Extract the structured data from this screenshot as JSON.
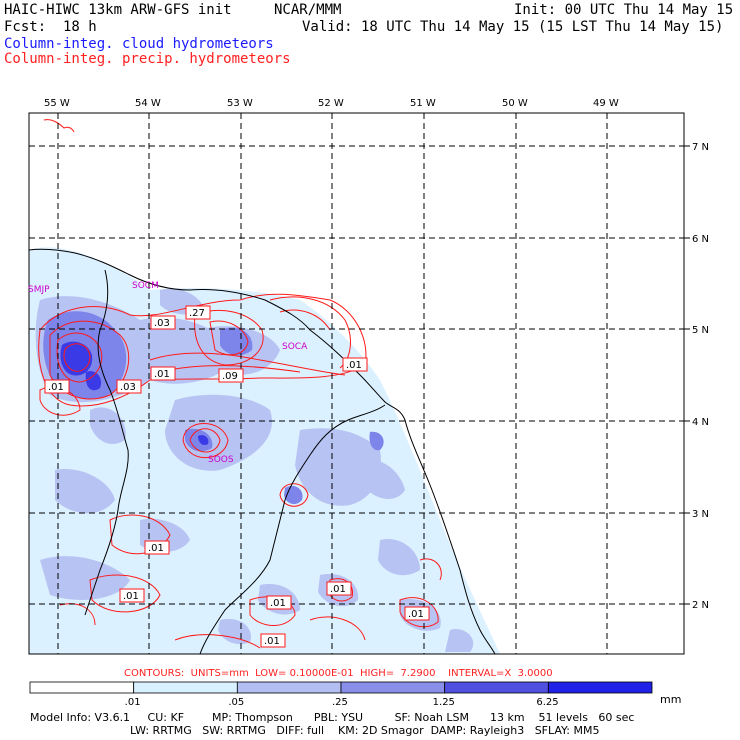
{
  "header": {
    "model": "HAIC-HIWC 13km ARW-GFS init",
    "org": "NCAR/MMM",
    "init": "Init: 00 UTC Thu 14 May 15",
    "fcst": "Fcst:  18 h",
    "valid": "Valid: 18 UTC Thu 14 May 15 (15 LST Thu 14 May 15)",
    "field_cloud": "Column-integ. cloud hydrometeors",
    "field_precip": "Column-integ. precip. hydrometeors"
  },
  "map": {
    "lon_labels": [
      "55 W",
      "54 W",
      "53 W",
      "52 W",
      "51 W",
      "50 W",
      "49 W"
    ],
    "lat_labels": [
      "7 N",
      "6 N",
      "5 N",
      "4 N",
      "3 N",
      "2 N"
    ],
    "stations": [
      "SMJP",
      "SOCM",
      "SOCA",
      "SOOS"
    ],
    "contour_labels": [
      ".03",
      ".27",
      ".01",
      ".01",
      ".09",
      ".01",
      ".03",
      ".01",
      ".01",
      ".01",
      ".01",
      ".01",
      ".01"
    ],
    "colors": {
      "cloud_light": "#dff2ff",
      "cloud_mid": "#b8c4f4",
      "cloud_dark": "#7f86ea",
      "cloud_core": "#3a3ae6",
      "precip": "#ff1a1a",
      "station": "#cc00cc"
    }
  },
  "contour_info": "CONTOURS:  UNITS=mm  LOW= 0.10000E-01  HIGH=  7.2900    INTERVAL=X  3.0000",
  "colorbar": {
    "ticks": [
      ".01",
      ".05",
      ".25",
      "1.25",
      "6.25"
    ],
    "unit": "mm",
    "colors": [
      "#ffffff",
      "#d8f0ff",
      "#b3bff2",
      "#8a90ea",
      "#5050e0",
      "#2020e6"
    ]
  },
  "model_info": {
    "line1": "Model Info: V3.6.1     CU: KF        MP: Thompson      PBL: YSU         SF: Noah LSM      13 km    51 levels   60 sec",
    "line2": "LW: RRTMG   SW: RRTMG   DIFF: full    KM: 2D Smagor  DAMP: Rayleigh3   SFLAY: MM5"
  }
}
